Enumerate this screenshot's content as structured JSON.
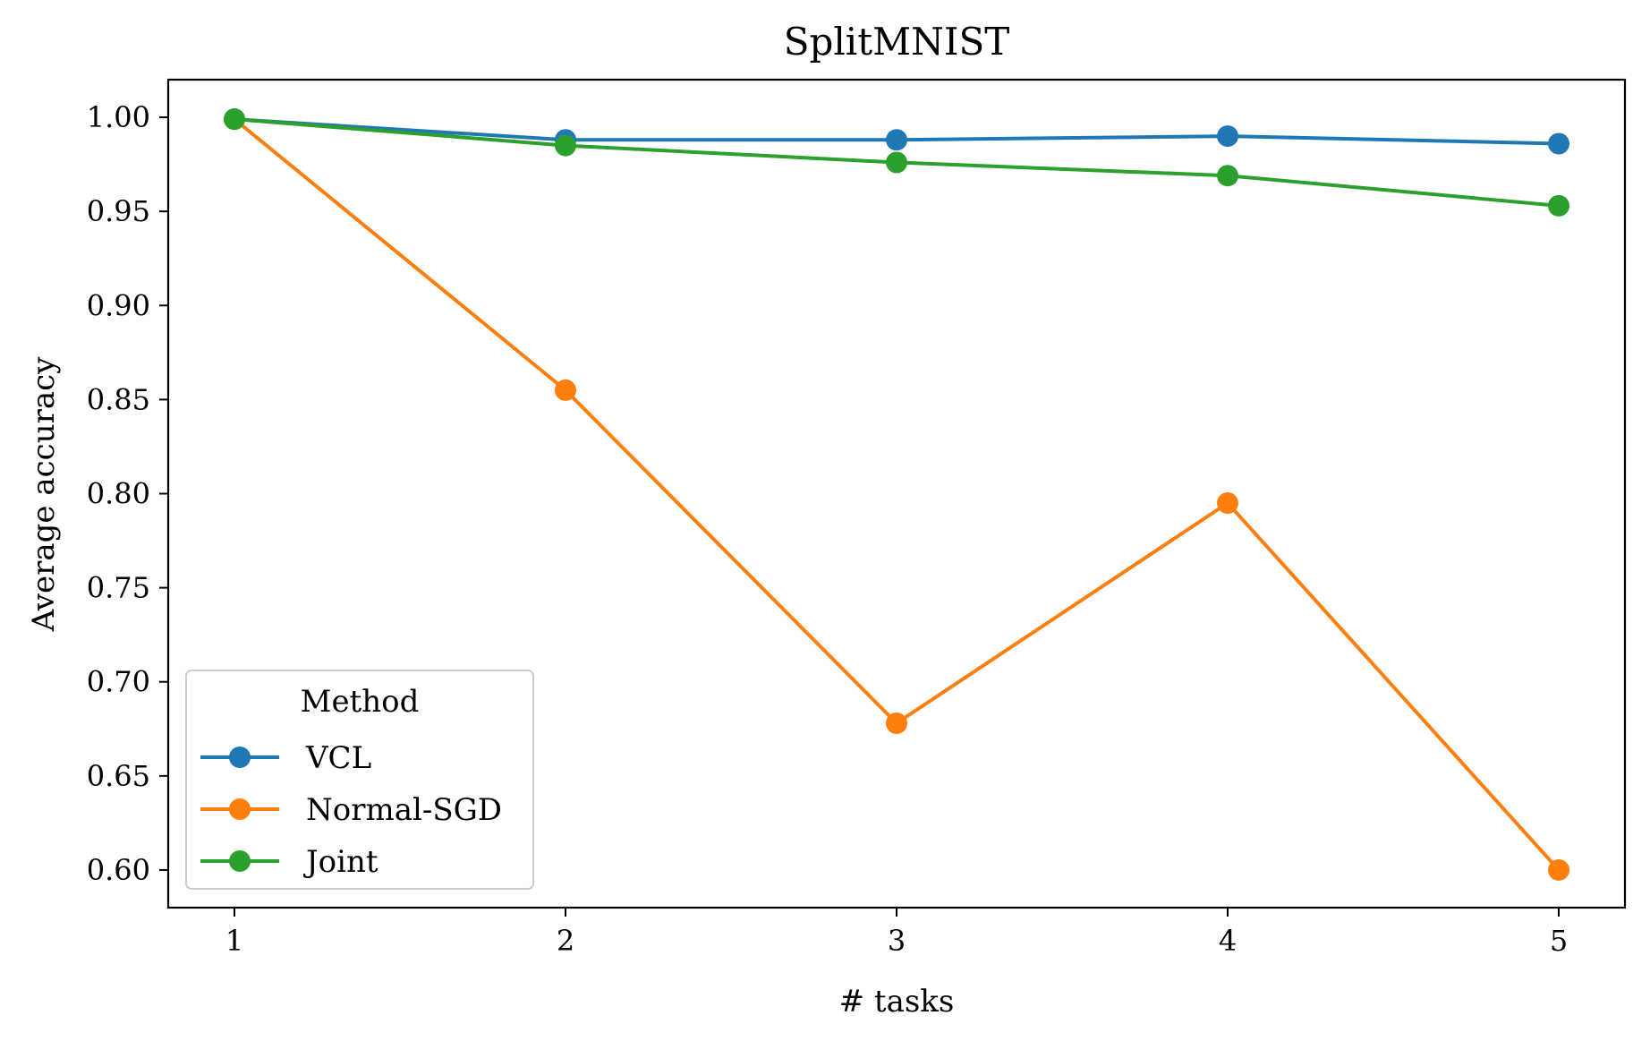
{
  "chart_data": {
    "type": "line",
    "title": "SplitMNIST",
    "xlabel": "# tasks",
    "ylabel": "Average accuracy",
    "x": [
      1,
      2,
      3,
      4,
      5
    ],
    "xticks": [
      "1",
      "2",
      "3",
      "4",
      "5"
    ],
    "xlim": [
      0.8,
      5.2
    ],
    "ylim": [
      0.58,
      1.02
    ],
    "yticks": [
      "0.60",
      "0.65",
      "0.70",
      "0.75",
      "0.80",
      "0.85",
      "0.90",
      "0.95",
      "1.00"
    ],
    "grid": false,
    "legend": {
      "title": "Method",
      "placement": "lower-left"
    },
    "series": [
      {
        "name": "VCL",
        "color": "#1f77b4",
        "values": [
          0.999,
          0.988,
          0.988,
          0.99,
          0.986
        ]
      },
      {
        "name": "Normal-SGD",
        "color": "#ff7f0e",
        "values": [
          0.999,
          0.855,
          0.678,
          0.795,
          0.6
        ]
      },
      {
        "name": "Joint",
        "color": "#2ca02c",
        "values": [
          0.999,
          0.985,
          0.976,
          0.969,
          0.953
        ]
      }
    ]
  }
}
